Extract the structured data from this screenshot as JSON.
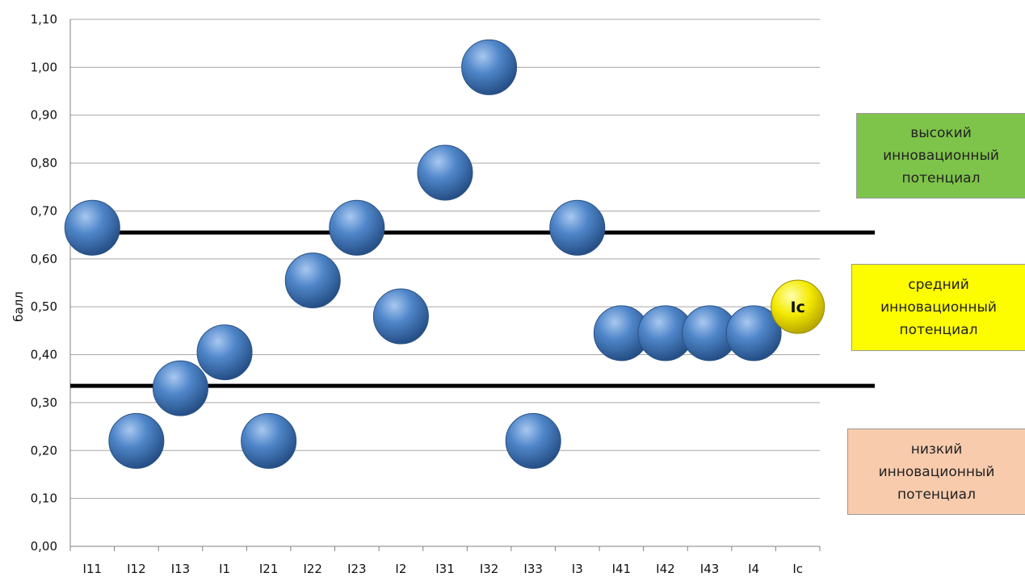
{
  "chart_data": {
    "type": "scatter",
    "title": "",
    "xlabel": "",
    "ylabel": "балл",
    "ylim": [
      0,
      1.1
    ],
    "y_ticks": [
      "0,00",
      "0,10",
      "0,20",
      "0,30",
      "0,40",
      "0,50",
      "0,60",
      "0,70",
      "0,80",
      "0,90",
      "1,00",
      "1,10"
    ],
    "categories": [
      "I11",
      "I12",
      "I13",
      "I1",
      "I21",
      "I22",
      "I23",
      "I2",
      "I31",
      "I32",
      "I33",
      "I3",
      "I41",
      "I42",
      "I43",
      "I4",
      "Ic"
    ],
    "values": [
      0.665,
      0.22,
      0.33,
      0.405,
      0.22,
      0.555,
      0.665,
      0.48,
      0.78,
      1.0,
      0.22,
      0.665,
      0.445,
      0.445,
      0.445,
      0.445,
      0.5
    ],
    "highlight": {
      "category": "Ic",
      "label": "Ic",
      "color": "#f3e800"
    },
    "marker_color": "#4a7ec0",
    "grid": true,
    "thresholds": [
      0.655,
      0.335
    ],
    "bands": [
      {
        "key": "high",
        "label": "высокий\nинновационный\nпотенциал",
        "color": "#7ec34a"
      },
      {
        "key": "mid",
        "label": "средний\nинновационный\nпотенциал",
        "color": "#fdfd00"
      },
      {
        "key": "low",
        "label": "низкий\nинновационный\nпотенциал",
        "color": "#f8cbad"
      }
    ]
  }
}
